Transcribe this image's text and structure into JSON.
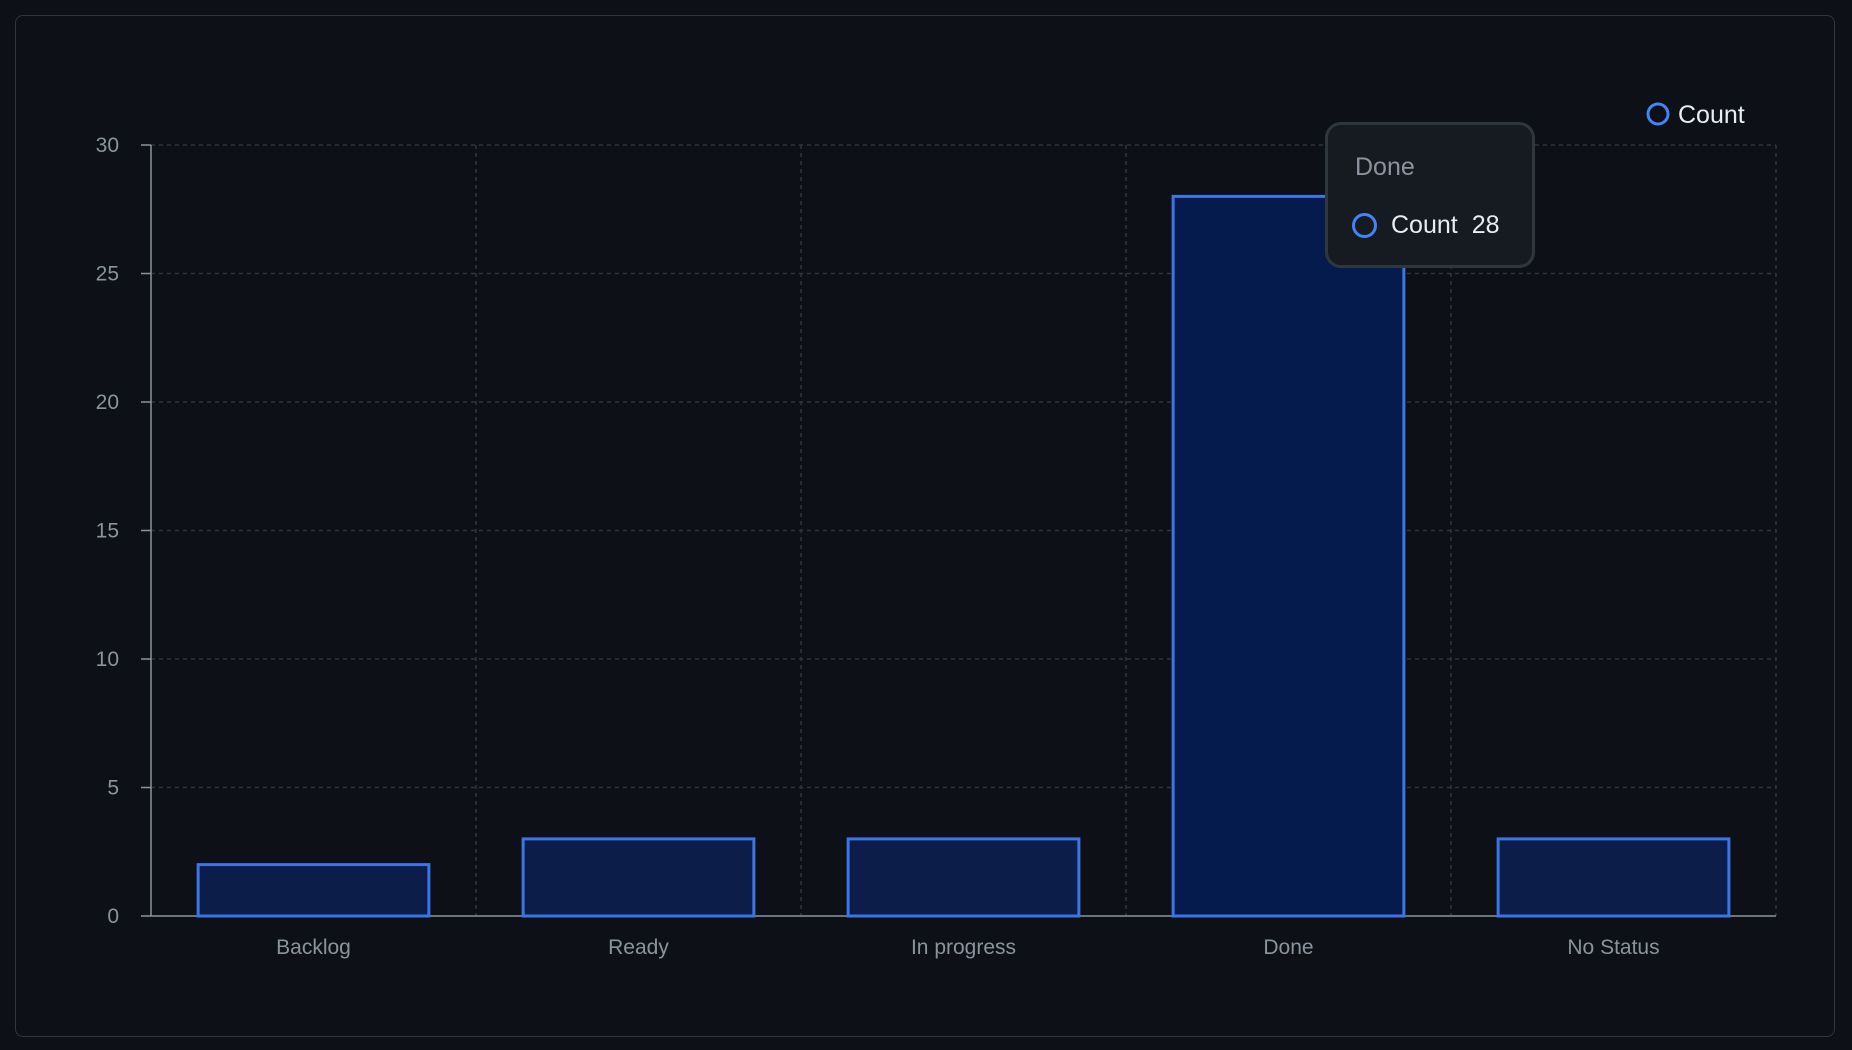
{
  "colors": {
    "background": "#0d1117",
    "grid": "#30363d",
    "axis": "#8b949e",
    "bar_fill": "#0c1d4a",
    "bar_fill_active": "#051a4d",
    "bar_stroke": "#3d74e6",
    "text_muted": "#8b949e",
    "text": "#e6edf3"
  },
  "legend": {
    "label": "Count",
    "icon": "circle-outline-icon"
  },
  "tooltip": {
    "title": "Done",
    "series_label": "Count",
    "value": "28"
  },
  "chart_data": {
    "type": "bar",
    "categories": [
      "Backlog",
      "Ready",
      "In progress",
      "Done",
      "No Status"
    ],
    "series": [
      {
        "name": "Count",
        "values": [
          2,
          3,
          3,
          28,
          3
        ]
      }
    ],
    "ylim": [
      0,
      30
    ],
    "yticks": [
      0,
      5,
      10,
      15,
      20,
      25,
      30
    ],
    "grid": true,
    "legend_position": "top-right",
    "highlighted_category": "Done"
  }
}
